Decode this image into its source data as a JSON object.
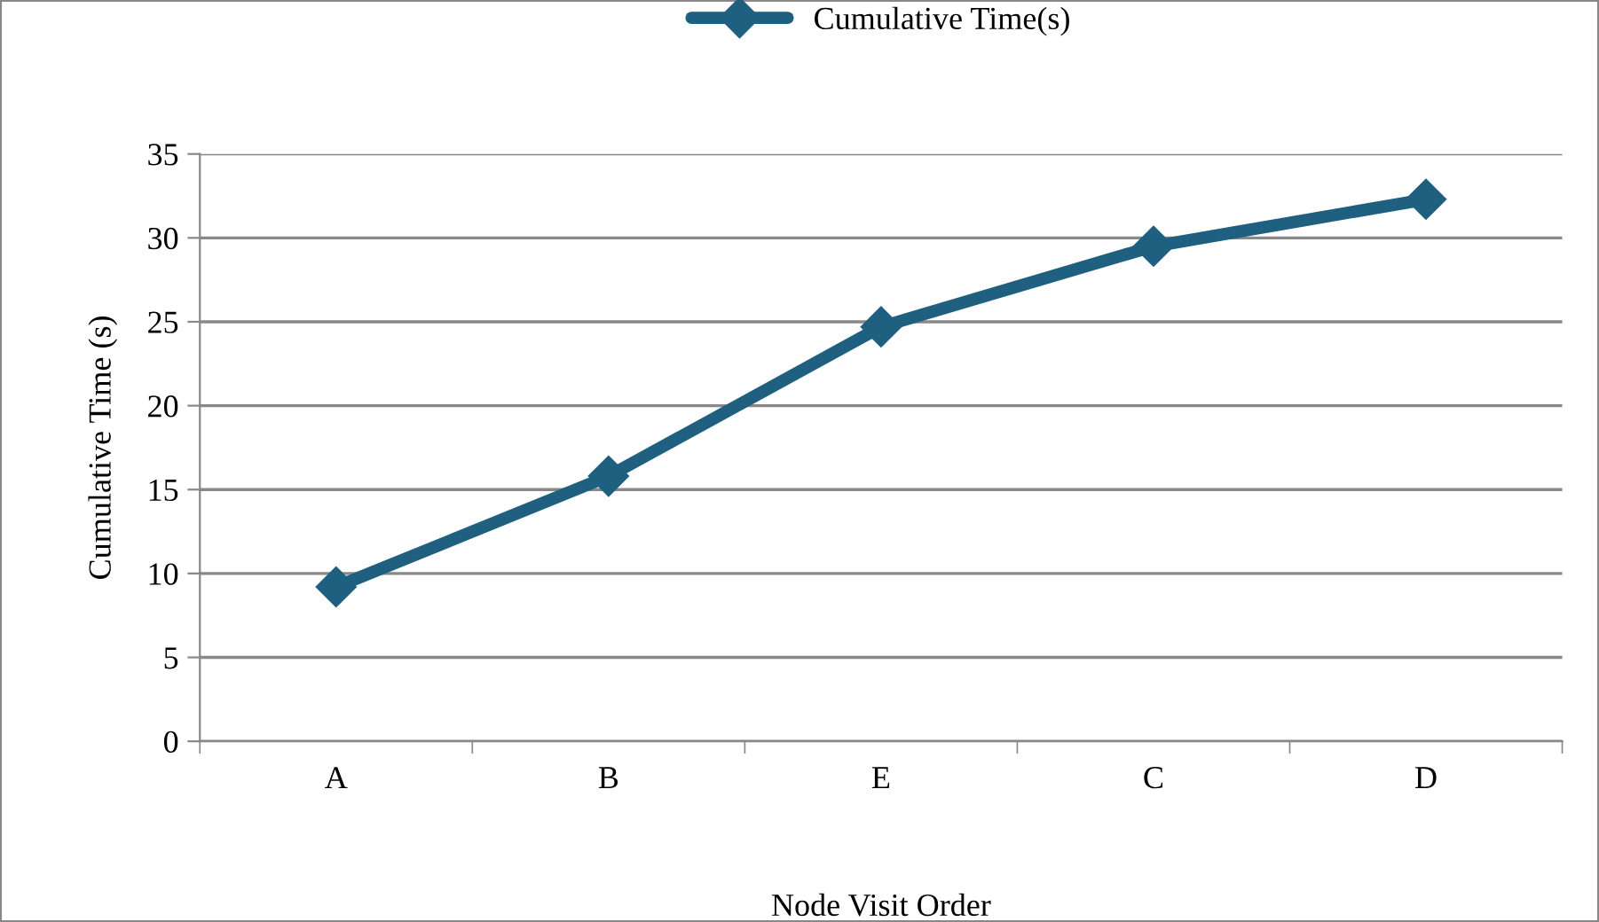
{
  "chart_data": {
    "type": "line",
    "xlabel": "Node Visit Order",
    "ylabel": "Cumulative Time (s)",
    "categories": [
      "A",
      "B",
      "E",
      "C",
      "D"
    ],
    "series": [
      {
        "name": "Cumulative Time(s)",
        "color": "#1f5f7f",
        "values": [
          9.2,
          15.8,
          24.7,
          29.5,
          32.3
        ]
      }
    ],
    "ylim": [
      0,
      35
    ],
    "yticks": [
      0,
      5,
      10,
      15,
      20,
      25,
      30,
      35
    ],
    "grid": "y",
    "legend": "top",
    "marker": "diamond",
    "line_style": "solid"
  }
}
